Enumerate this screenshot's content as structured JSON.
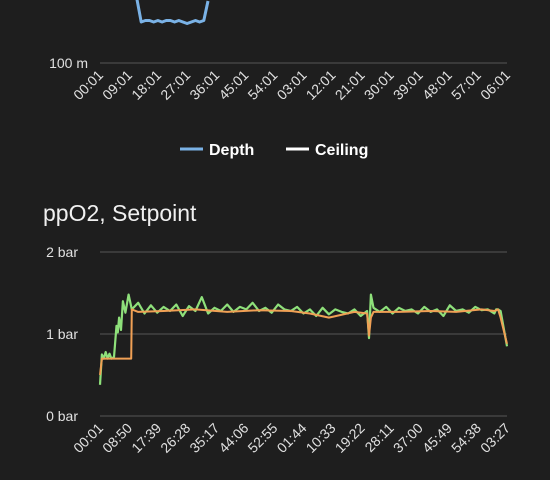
{
  "chart_data": [
    {
      "type": "line",
      "title": "",
      "y_ticks": [
        "100 m"
      ],
      "x_ticks": [
        "00:01",
        "09:01",
        "18:01",
        "27:01",
        "36:01",
        "45:01",
        "54:01",
        "03:01",
        "12:01",
        "21:01",
        "30:01",
        "39:01",
        "48:01",
        "57:01",
        "06:01"
      ],
      "legend": {
        "placement": "bottom-center",
        "entries": [
          "Depth",
          "Ceiling"
        ]
      },
      "colors": {
        "Depth": "#7ab2e6",
        "Ceiling": "#ffffff"
      },
      "series": [
        {
          "name": "Depth",
          "values": [
            6,
            7,
            8,
            8,
            7,
            8,
            7,
            8,
            8,
            7,
            8,
            7,
            6,
            7,
            8,
            7,
            8,
            5
          ]
        },
        {
          "name": "Ceiling",
          "values": []
        }
      ]
    },
    {
      "type": "line",
      "title": "ppO2, Setpoint",
      "y_ticks": [
        "2 bar",
        "1 bar",
        "0 bar"
      ],
      "ylim": [
        0,
        2
      ],
      "x_ticks": [
        "00:01",
        "08:50",
        "17:39",
        "26:28",
        "35:17",
        "44:06",
        "52:55",
        "01:44",
        "10:33",
        "19:22",
        "28:11",
        "37:00",
        "45:49",
        "54:38",
        "03:27"
      ],
      "colors": {
        "ppO2": "#8ee07a",
        "Setpoint": "#f0a055"
      },
      "series": [
        {
          "name": "ppO2",
          "x": [
            0,
            0.3,
            0.6,
            0.9,
            1.2,
            1.5,
            1.8,
            2.2,
            2.6,
            2.8,
            3.0,
            3.3,
            3.6,
            4.0,
            4.5,
            5.0,
            6,
            7,
            8,
            9,
            10,
            11,
            12,
            13,
            14,
            15,
            16,
            17,
            18,
            19,
            20,
            21,
            22,
            23,
            24,
            25,
            26,
            27,
            28,
            29,
            30,
            31,
            32,
            33,
            34,
            35,
            36,
            37,
            38,
            39,
            40,
            41,
            42,
            42.3,
            42.6,
            43,
            44,
            45,
            46,
            47,
            48,
            49,
            50,
            51,
            52,
            53,
            54,
            55,
            56,
            57,
            58,
            59,
            60,
            61,
            62,
            62.3,
            62.6,
            63,
            64
          ],
          "values": [
            0.38,
            0.75,
            0.7,
            0.78,
            0.7,
            0.76,
            0.7,
            0.72,
            1.1,
            1.02,
            1.2,
            1.05,
            1.4,
            1.26,
            1.48,
            1.3,
            1.38,
            1.25,
            1.35,
            1.26,
            1.33,
            1.28,
            1.36,
            1.22,
            1.34,
            1.28,
            1.45,
            1.25,
            1.32,
            1.28,
            1.36,
            1.27,
            1.33,
            1.3,
            1.38,
            1.28,
            1.32,
            1.26,
            1.36,
            1.3,
            1.28,
            1.33,
            1.25,
            1.3,
            1.22,
            1.32,
            1.24,
            1.3,
            1.27,
            1.25,
            1.3,
            1.22,
            1.28,
            0.95,
            1.48,
            1.32,
            1.27,
            1.33,
            1.25,
            1.32,
            1.28,
            1.3,
            1.25,
            1.33,
            1.27,
            1.3,
            1.22,
            1.35,
            1.28,
            1.3,
            1.26,
            1.33,
            1.29,
            1.3,
            1.25,
            1.3,
            1.3,
            1.28,
            0.85
          ]
        },
        {
          "name": "Setpoint",
          "x": [
            0,
            0.3,
            0.5,
            1,
            2,
            3,
            4.9,
            5.0,
            6,
            10,
            15,
            20,
            25,
            30,
            33,
            36,
            40,
            42,
            42.3,
            42.6,
            43,
            47,
            52,
            56,
            60,
            62,
            62.6,
            63,
            64
          ],
          "values": [
            0.5,
            0.7,
            0.7,
            0.7,
            0.7,
            0.7,
            0.7,
            1.3,
            1.27,
            1.28,
            1.3,
            1.27,
            1.29,
            1.28,
            1.25,
            1.2,
            1.27,
            1.25,
            0.98,
            1.2,
            1.27,
            1.27,
            1.28,
            1.27,
            1.3,
            1.28,
            1.3,
            1.2,
            0.88
          ]
        }
      ]
    }
  ]
}
